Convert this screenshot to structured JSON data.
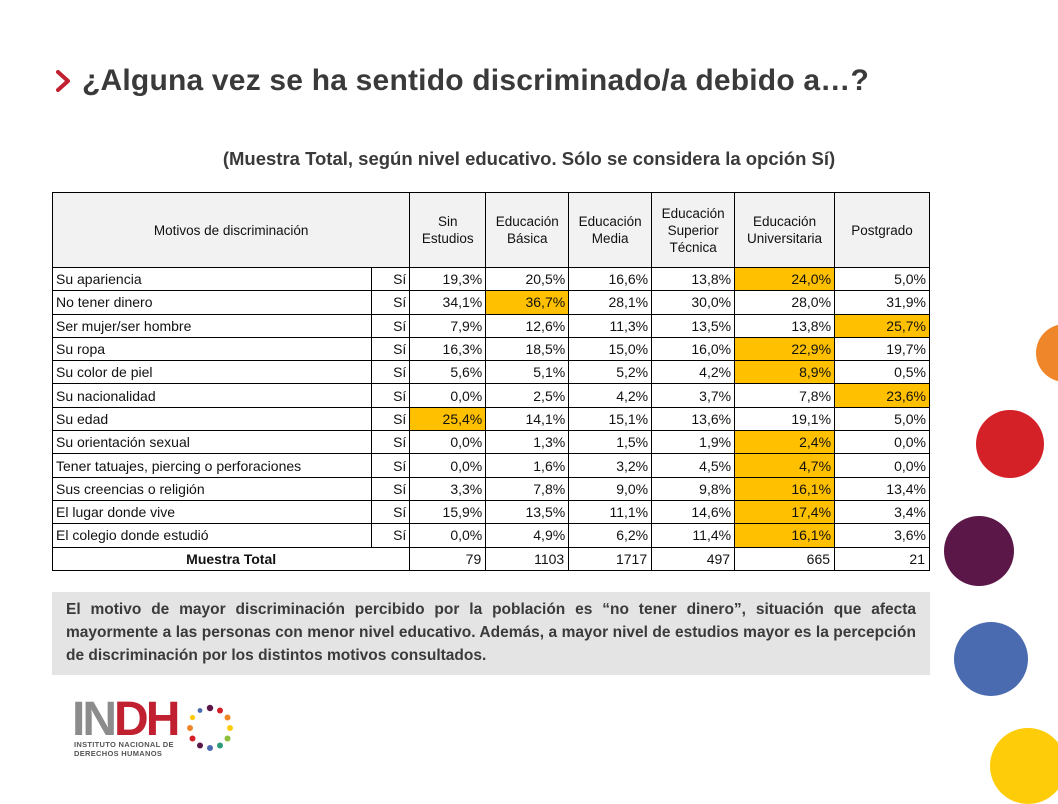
{
  "title": "¿Alguna vez se ha sentido discriminado/a debido a…?",
  "subtitle": "(Muestra Total, según nivel educativo. Sólo se considera la opción Sí)",
  "table": {
    "headers": [
      "Motivos de discriminación",
      "Sin Estudios",
      "Educación Básica",
      "Educación Media",
      "Educación Superior Técnica",
      "Educación Universitaria",
      "Postgrado"
    ],
    "rows": [
      {
        "motivo": "Su apariencia",
        "si": "Sí",
        "values": [
          "19,3%",
          "20,5%",
          "16,6%",
          "13,8%",
          "24,0%",
          "5,0%"
        ],
        "highlight": 4
      },
      {
        "motivo": "No tener dinero",
        "si": "Sí",
        "values": [
          "34,1%",
          "36,7%",
          "28,1%",
          "30,0%",
          "28,0%",
          "31,9%"
        ],
        "highlight": 1
      },
      {
        "motivo": "Ser mujer/ser hombre",
        "si": "Sí",
        "values": [
          "7,9%",
          "12,6%",
          "11,3%",
          "13,5%",
          "13,8%",
          "25,7%"
        ],
        "highlight": 5
      },
      {
        "motivo": "Su ropa",
        "si": "Sí",
        "values": [
          "16,3%",
          "18,5%",
          "15,0%",
          "16,0%",
          "22,9%",
          "19,7%"
        ],
        "highlight": 4
      },
      {
        "motivo": "Su color de piel",
        "si": "Sí",
        "values": [
          "5,6%",
          "5,1%",
          "5,2%",
          "4,2%",
          "8,9%",
          "0,5%"
        ],
        "highlight": 4
      },
      {
        "motivo": "Su nacionalidad",
        "si": "Sí",
        "values": [
          "0,0%",
          "2,5%",
          "4,2%",
          "3,7%",
          "7,8%",
          "23,6%"
        ],
        "highlight": 5
      },
      {
        "motivo": "Su edad",
        "si": "Sí",
        "values": [
          "25,4%",
          "14,1%",
          "15,1%",
          "13,6%",
          "19,1%",
          "5,0%"
        ],
        "highlight": 0
      },
      {
        "motivo": "Su orientación sexual",
        "si": "Sí",
        "values": [
          "0,0%",
          "1,3%",
          "1,5%",
          "1,9%",
          "2,4%",
          "0,0%"
        ],
        "highlight": 4
      },
      {
        "motivo": "Tener tatuajes, piercing o perforaciones",
        "si": "Sí",
        "values": [
          "0,0%",
          "1,6%",
          "3,2%",
          "4,5%",
          "4,7%",
          "0,0%"
        ],
        "highlight": 4
      },
      {
        "motivo": "Sus creencias o religión",
        "si": "Sí",
        "values": [
          "3,3%",
          "7,8%",
          "9,0%",
          "9,8%",
          "16,1%",
          "13,4%"
        ],
        "highlight": 4
      },
      {
        "motivo": "El lugar donde vive",
        "si": "Sí",
        "values": [
          "15,9%",
          "13,5%",
          "11,1%",
          "14,6%",
          "17,4%",
          "3,4%"
        ],
        "highlight": 4
      },
      {
        "motivo": "El colegio donde estudió",
        "si": "Sí",
        "values": [
          "0,0%",
          "4,9%",
          "6,2%",
          "11,4%",
          "16,1%",
          "3,6%"
        ],
        "highlight": 4
      }
    ],
    "total": {
      "label": "Muestra Total",
      "values": [
        "79",
        "1103",
        "1717",
        "497",
        "665",
        "21"
      ]
    }
  },
  "note": "El motivo de mayor discriminación percibido por la población es “no tener dinero”, situación que afecta mayormente a las personas con menor nivel educativo. Además, a mayor nivel de estudios mayor es la percepción de discriminación por los distintos motivos consultados.",
  "logo": {
    "name": "INDH",
    "subtitle_line1": "INSTITUTO NACIONAL DE",
    "subtitle_line2": "DERECHOS HUMANOS"
  },
  "colors": {
    "highlight": "#ffc000",
    "accent_red": "#c0202f",
    "circle_orange": "#f0862a",
    "circle_red": "#d42027",
    "circle_purple": "#5b1748",
    "circle_blue": "#4a6baf",
    "circle_yellow": "#ffcc0a"
  }
}
